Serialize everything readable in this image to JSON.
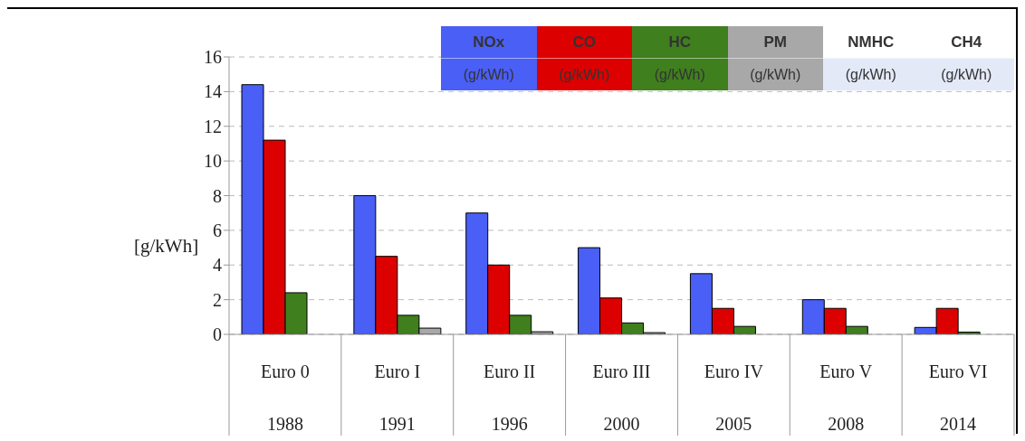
{
  "chart_data": {
    "type": "bar",
    "ylabel": "[g/kWh]",
    "legend_title": "(g/kWh)",
    "categories": [
      "Euro 0\n1988",
      "Euro I\n1991",
      "Euro II\n1996",
      "Euro III\n2000",
      "Euro IV\n2005",
      "Euro V\n2008",
      "Euro VI\n2014"
    ],
    "series": [
      {
        "name": "NOx",
        "color": "#4a5ff5",
        "values": [
          14.4,
          8,
          7,
          5,
          3.5,
          2,
          0.4
        ]
      },
      {
        "name": "CO",
        "color": "#dd0000",
        "values": [
          11.2,
          4.5,
          4,
          2.1,
          1.5,
          1.5,
          1.5
        ]
      },
      {
        "name": "HC",
        "color": "#3f7f1e",
        "values": [
          2.4,
          1.1,
          1.1,
          0.66,
          0.46,
          0.46,
          0.13
        ]
      },
      {
        "name": "PM",
        "color": "#a8a8a8",
        "values": [
          null,
          0.36,
          0.15,
          0.1,
          null,
          null,
          null
        ]
      },
      {
        "name": "NMHC",
        "values": [
          null,
          null,
          null,
          null,
          null,
          null,
          null
        ]
      },
      {
        "name": "CH4",
        "values": [
          null,
          null,
          null,
          null,
          null,
          null,
          null
        ]
      }
    ],
    "ylim": [
      0,
      16
    ],
    "yticks": [
      0,
      2,
      4,
      6,
      8,
      10,
      12,
      14,
      16
    ],
    "grid": "y",
    "legend": "top right"
  }
}
